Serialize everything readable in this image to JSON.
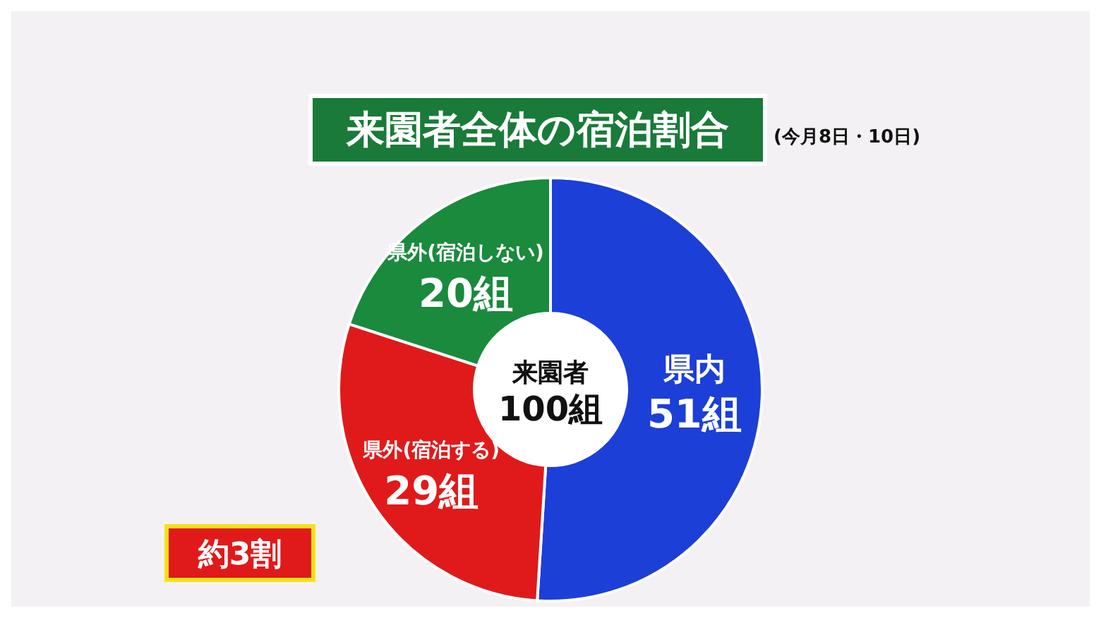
{
  "chart_data": {
    "type": "donut",
    "title": "来園者全体の宿泊割合",
    "subtitle": "(今月8日・10日)",
    "categories": [
      "県内",
      "県外(宿泊する)",
      "県外(宿泊しない)"
    ],
    "values": [
      51,
      29,
      20
    ],
    "colors": [
      "#1c3fd8",
      "#e01a1a",
      "#1a8a3c"
    ],
    "value_labels": [
      "51組",
      "29組",
      "20組"
    ],
    "annotations": [
      "来園者 100組",
      "約3割"
    ]
  }
}
